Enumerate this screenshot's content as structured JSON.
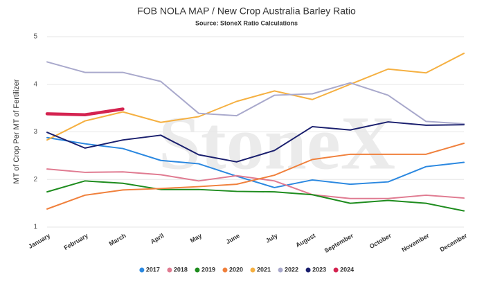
{
  "chart_data": {
    "type": "line",
    "title": "FOB NOLA MAP / New Crop Australia Barley Ratio",
    "subtitle": "Source: StoneX Ratio Calculations",
    "watermark": "StoneX",
    "y_label": "MT of Crop Per MT of Fertilizer",
    "categories": [
      "January",
      "February",
      "March",
      "April",
      "May",
      "June",
      "July",
      "August",
      "September",
      "October",
      "November",
      "December"
    ],
    "ylim": [
      1,
      5
    ],
    "yticks": [
      1,
      2,
      3,
      4,
      5
    ],
    "grid": true,
    "legend": "bottom",
    "series": [
      {
        "name": "2017",
        "color": "#2b88e0",
        "values": [
          2.88,
          2.75,
          2.65,
          2.4,
          2.33,
          2.07,
          1.83,
          1.99,
          1.9,
          1.95,
          2.27,
          2.36
        ]
      },
      {
        "name": "2018",
        "color": "#e07b91",
        "values": [
          2.22,
          2.15,
          2.16,
          2.1,
          1.97,
          2.08,
          1.97,
          1.68,
          1.6,
          1.6,
          1.67,
          1.61
        ]
      },
      {
        "name": "2019",
        "color": "#1e8c1e",
        "values": [
          1.74,
          1.97,
          1.92,
          1.79,
          1.79,
          1.75,
          1.74,
          1.68,
          1.5,
          1.56,
          1.5,
          1.34
        ]
      },
      {
        "name": "2020",
        "color": "#f0803c",
        "values": [
          1.38,
          1.67,
          1.78,
          1.81,
          1.85,
          1.9,
          2.09,
          2.42,
          2.53,
          2.53,
          2.53,
          2.76
        ]
      },
      {
        "name": "2021",
        "color": "#f5b041",
        "values": [
          2.83,
          3.23,
          3.42,
          3.2,
          3.32,
          3.64,
          3.86,
          3.68,
          4.0,
          4.32,
          4.24,
          4.65
        ]
      },
      {
        "name": "2022",
        "color": "#a9a9cc",
        "values": [
          4.47,
          4.25,
          4.25,
          4.06,
          3.39,
          3.34,
          3.77,
          3.8,
          4.03,
          3.77,
          3.22,
          3.17
        ]
      },
      {
        "name": "2023",
        "color": "#1a1f6e",
        "values": [
          2.99,
          2.66,
          2.83,
          2.93,
          2.52,
          2.37,
          2.61,
          3.11,
          3.04,
          3.21,
          3.14,
          3.15
        ]
      },
      {
        "name": "2024",
        "color": "#d42350",
        "values": [
          3.38,
          3.36,
          3.48,
          null,
          null,
          null,
          null,
          null,
          null,
          null,
          null,
          null
        ]
      }
    ]
  }
}
